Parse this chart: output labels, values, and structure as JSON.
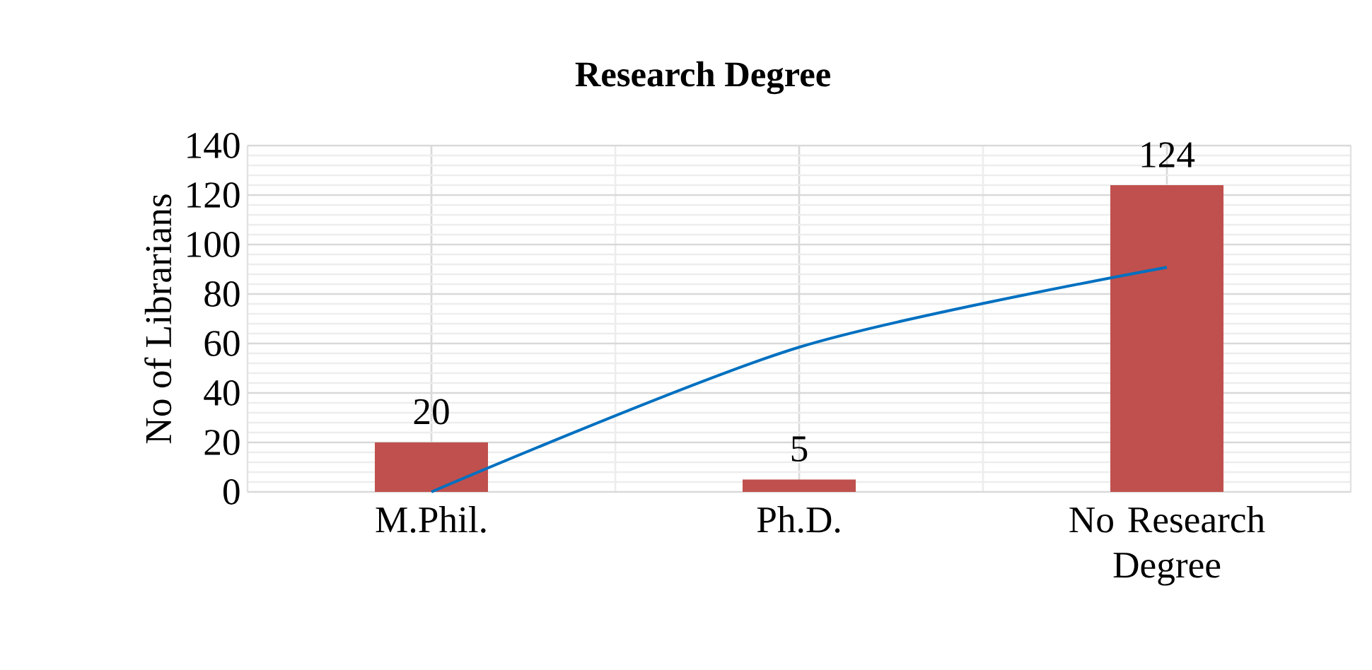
{
  "chart_data": {
    "type": "bar",
    "title": "Research Degree",
    "ylabel": "No of Librarians",
    "categories": [
      "M.Phil.",
      "Ph.D.",
      "No Research Degree"
    ],
    "series": [
      {
        "color": "#c0504d",
        "values": [
          20,
          5,
          124
        ],
        "value_labels": [
          "20",
          "5",
          "124"
        ]
      },
      {
        "type": "line",
        "color": "#0070c0",
        "values": [
          0,
          58.5,
          90.8
        ]
      }
    ],
    "ylim": [
      0,
      140
    ],
    "yticks": [
      0,
      20,
      40,
      60,
      80,
      100,
      120,
      140
    ],
    "grid": true
  }
}
